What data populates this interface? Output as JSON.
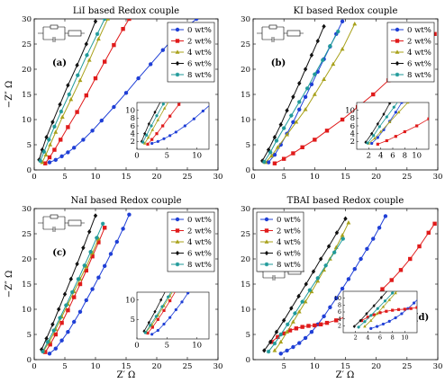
{
  "figure": {
    "ylabel_shared": "−Z″ Ω",
    "xlabel_shared": "Z′ Ω"
  },
  "series_colors": {
    "0 wt%": "#1f3fd6",
    "2 wt%": "#e01b1b",
    "4 wt%": "#a8a11a",
    "6 wt%": "#111111",
    "8 wt%": "#1f9a9a"
  },
  "circuit_icon": "equivalent-circuit-icon",
  "chart_data": [
    {
      "type": "line",
      "title": "LiI based Redox couple",
      "panel_label": "(a)",
      "xlim": [
        0,
        30
      ],
      "ylim": [
        0,
        30
      ],
      "xticks": [
        0,
        5,
        10,
        15,
        20,
        25,
        30
      ],
      "yticks": [
        0,
        5,
        10,
        15,
        20,
        25,
        30
      ],
      "legend_position": "top-right",
      "inset": {
        "xlim": [
          0,
          12
        ],
        "ylim": [
          0,
          12
        ],
        "xticks": [
          0,
          5,
          10
        ],
        "yticks": [
          2,
          4,
          6,
          8,
          10
        ]
      },
      "series": [
        {
          "name": "0 wt%",
          "marker": "circle",
          "x": [
            2.5,
            3.5,
            4.5,
            5.5,
            6.5,
            8,
            9.5,
            11,
            13,
            15,
            17,
            19,
            21,
            23,
            25,
            26.5
          ],
          "y": [
            1.5,
            2,
            2.7,
            3.5,
            4.4,
            6,
            7.8,
            9.8,
            12.5,
            15.3,
            18.2,
            21,
            23.8,
            26.5,
            28.5,
            30
          ]
        },
        {
          "name": "2 wt%",
          "marker": "square",
          "x": [
            1.8,
            2.5,
            3.3,
            4.3,
            5.5,
            7,
            8.5,
            10,
            11.5,
            13,
            14.5,
            15.5
          ],
          "y": [
            1.3,
            2.5,
            4,
            6,
            8.5,
            11.5,
            14.8,
            18.2,
            21.5,
            24.8,
            28,
            30
          ]
        },
        {
          "name": "4 wt%",
          "marker": "triangle",
          "x": [
            1.3,
            1.9,
            2.6,
            3.5,
            4.6,
            6,
            7.5,
            9,
            10.5,
            12
          ],
          "y": [
            1.5,
            3,
            5,
            7.5,
            10.5,
            14,
            17.8,
            21.8,
            26,
            30
          ]
        },
        {
          "name": "6 wt%",
          "marker": "diamond",
          "x": [
            0.8,
            1.3,
            2,
            3,
            4.2,
            5.5,
            7,
            8.5,
            10
          ],
          "y": [
            2,
            4,
            6.5,
            9.5,
            13,
            16.8,
            20.8,
            25,
            29.5
          ]
        },
        {
          "name": "8 wt%",
          "marker": "cross",
          "x": [
            1,
            1.6,
            2.4,
            3.3,
            4.4,
            5.7,
            7.1,
            8.6,
            10.3,
            11.5
          ],
          "y": [
            1.8,
            3.6,
            6,
            8.6,
            11.6,
            15,
            18.8,
            22.8,
            27,
            30
          ]
        }
      ]
    },
    {
      "type": "line",
      "title": "KI based Redox couple",
      "panel_label": "(b)",
      "xlim": [
        0,
        30
      ],
      "ylim": [
        0,
        30
      ],
      "xticks": [
        0,
        5,
        10,
        15,
        20,
        25,
        30
      ],
      "yticks": [
        0,
        5,
        10,
        15,
        20,
        25,
        30
      ],
      "legend_position": "top-right",
      "inset": {
        "xlim": [
          0,
          12
        ],
        "ylim": [
          0,
          12
        ],
        "xticks": [
          2,
          4,
          6,
          8,
          10
        ],
        "yticks": [
          2,
          4,
          6,
          8,
          10
        ]
      },
      "series": [
        {
          "name": "0 wt%",
          "marker": "circle",
          "x": [
            2.5,
            3.5,
            4.5,
            5.5,
            6.5,
            7.5,
            8.5,
            9.5,
            10.5,
            11.5,
            12.5,
            13.5,
            14.5
          ],
          "y": [
            1.5,
            3,
            5,
            7.2,
            9.5,
            12,
            14.5,
            17,
            19.5,
            22,
            24.5,
            27,
            29.5
          ]
        },
        {
          "name": "2 wt%",
          "marker": "square",
          "x": [
            3.5,
            5,
            6.5,
            8,
            10,
            12,
            14.5,
            17,
            19.5,
            22,
            24.5,
            27,
            29.5
          ],
          "y": [
            1.3,
            2.2,
            3.3,
            4.5,
            6,
            7.8,
            10,
            12.5,
            15,
            17.8,
            20.8,
            23.8,
            27
          ]
        },
        {
          "name": "4 wt%",
          "marker": "triangle",
          "x": [
            2,
            3,
            4,
            5.5,
            7,
            8.5,
            10,
            11.5,
            13,
            14.5,
            16.5
          ],
          "y": [
            1.5,
            2.8,
            4.5,
            7,
            9.5,
            12,
            15,
            18,
            21,
            24,
            29
          ]
        },
        {
          "name": "6 wt%",
          "marker": "diamond",
          "x": [
            1.5,
            2.5,
            3.5,
            4.5,
            5.5,
            6.5,
            7.5,
            8.5,
            9.5,
            10.5,
            11.5
          ],
          "y": [
            1.8,
            4,
            6.5,
            9,
            11.8,
            14.5,
            17.2,
            20,
            22.8,
            25.6,
            28.5
          ]
        },
        {
          "name": "8 wt%",
          "marker": "cross",
          "x": [
            1.8,
            2.8,
            3.8,
            5,
            6.2,
            7.5,
            8.8,
            10,
            11.3,
            12.5,
            13.8
          ],
          "y": [
            1.6,
            3.5,
            5.8,
            8.3,
            10.8,
            13.5,
            16.2,
            19,
            21.8,
            24.6,
            27.5
          ]
        }
      ]
    },
    {
      "type": "line",
      "title": "NaI based Redox couple",
      "panel_label": "(c)",
      "xlim": [
        0,
        30
      ],
      "ylim": [
        0,
        30
      ],
      "xticks": [
        0,
        5,
        10,
        15,
        20,
        25,
        30
      ],
      "yticks": [
        0,
        5,
        10,
        15,
        20,
        25,
        30
      ],
      "legend_position": "top-right",
      "inset": {
        "xlim": [
          0,
          12
        ],
        "ylim": [
          0,
          12
        ],
        "xticks": [
          0,
          5,
          10
        ],
        "yticks": [
          5,
          10
        ]
      },
      "series": [
        {
          "name": "0 wt%",
          "marker": "circle",
          "x": [
            2.5,
            3.5,
            4.5,
            5.5,
            6.5,
            7.5,
            8.5,
            9.5,
            10.5,
            11.5,
            12.5,
            13.5,
            14.5,
            15.5
          ],
          "y": [
            1.2,
            2.2,
            3.8,
            5.5,
            7.5,
            9.5,
            11.8,
            14,
            16.3,
            18.6,
            21,
            23.4,
            26,
            28.8
          ]
        },
        {
          "name": "2 wt%",
          "marker": "square",
          "x": [
            1.8,
            2.6,
            3.5,
            4.5,
            5.5,
            6.5,
            7.5,
            8.5,
            9.5,
            10.5,
            11.5
          ],
          "y": [
            1.5,
            3,
            5,
            7.3,
            9.8,
            12.4,
            15,
            17.7,
            20.5,
            23.3,
            26.2
          ]
        },
        {
          "name": "4 wt%",
          "marker": "triangle",
          "x": [
            1.5,
            2.5,
            3.5,
            4.5,
            5.5,
            6.5,
            7.5,
            8.5,
            9.5,
            10.5
          ],
          "y": [
            1.7,
            3.6,
            6,
            8.5,
            11,
            13.5,
            16,
            18.5,
            21.2,
            24
          ]
        },
        {
          "name": "6 wt%",
          "marker": "diamond",
          "x": [
            1.2,
            2,
            3,
            4,
            5,
            6,
            7,
            8,
            9,
            10
          ],
          "y": [
            2,
            4.2,
            7,
            10,
            13,
            16,
            19,
            22.2,
            25.4,
            28.6
          ]
        },
        {
          "name": "8 wt%",
          "marker": "cross",
          "x": [
            1.4,
            2.2,
            3.2,
            4.2,
            5.2,
            6.2,
            7.2,
            8.2,
            9.2,
            10.2,
            11.2
          ],
          "y": [
            1.6,
            3.5,
            5.8,
            8.3,
            10.8,
            13.4,
            16,
            18.7,
            21.4,
            24.2,
            27
          ]
        }
      ]
    },
    {
      "type": "line",
      "title": "TBAI based Redox couple",
      "panel_label": "(d)",
      "xlim": [
        0,
        30
      ],
      "ylim": [
        0,
        30
      ],
      "xticks": [
        5,
        10,
        15,
        20,
        25,
        30
      ],
      "yticks": [
        0,
        5,
        10,
        15,
        20,
        25,
        30
      ],
      "legend_position": "top-left",
      "inset": {
        "xlim": [
          0,
          12
        ],
        "ylim": [
          0,
          12
        ],
        "xticks": [
          2,
          4,
          6,
          8,
          10
        ],
        "yticks": [
          2,
          4,
          6,
          8,
          10
        ]
      },
      "series": [
        {
          "name": "0 wt%",
          "marker": "circle",
          "x": [
            4.5,
            5.5,
            6.5,
            7.5,
            8.5,
            9.5,
            10.5,
            11.5,
            12.5,
            13.5,
            14.5,
            15.5,
            16.5,
            17.5,
            18.5,
            19.5,
            20.5,
            21.5
          ],
          "y": [
            1.2,
            1.8,
            2.5,
            3.3,
            4.3,
            5.5,
            7,
            8.6,
            10.4,
            12.2,
            14.1,
            16,
            18,
            20,
            22,
            24,
            26.2,
            28.5
          ]
        },
        {
          "name": "2 wt%",
          "marker": "square",
          "x": [
            3,
            4,
            5,
            6,
            7,
            8,
            9,
            10,
            11,
            12,
            13.5,
            15,
            16.5,
            18,
            19.5,
            21,
            22.5,
            24,
            25.5,
            27,
            28.5,
            29.5
          ],
          "y": [
            3.5,
            4.5,
            5.2,
            5.8,
            6.2,
            6.5,
            6.7,
            6.8,
            7,
            7.3,
            7.8,
            8.5,
            9.5,
            10.8,
            12.3,
            14,
            15.8,
            17.8,
            20,
            22.5,
            25.2,
            27
          ]
        },
        {
          "name": "4 wt%",
          "marker": "triangle",
          "x": [
            3.5,
            4.5,
            5.5,
            6.5,
            7.5,
            8.5,
            9.5,
            10.5,
            11.5,
            12.5,
            13.5,
            14.5,
            15.5
          ],
          "y": [
            1.8,
            3.5,
            5.5,
            7.5,
            9.5,
            11.5,
            13.5,
            15.6,
            17.8,
            20,
            22.3,
            24.7,
            27.2
          ]
        },
        {
          "name": "6 wt%",
          "marker": "diamond",
          "x": [
            1.8,
            2.8,
            3.8,
            5,
            6.2,
            7.4,
            8.6,
            9.8,
            11,
            12.3,
            13.6,
            15
          ],
          "y": [
            1.8,
            3.5,
            5.5,
            7.8,
            10.2,
            12.6,
            15,
            17.5,
            20,
            22.5,
            25.2,
            28
          ]
        },
        {
          "name": "8 wt%",
          "marker": "cross",
          "x": [
            2.5,
            3.5,
            4.5,
            5.6,
            6.8,
            8,
            9.2,
            10.5,
            11.8,
            13.2,
            14.6
          ],
          "y": [
            1.6,
            3.2,
            5,
            7,
            9.2,
            11.5,
            13.8,
            16.2,
            18.7,
            21.3,
            24
          ]
        }
      ]
    }
  ]
}
